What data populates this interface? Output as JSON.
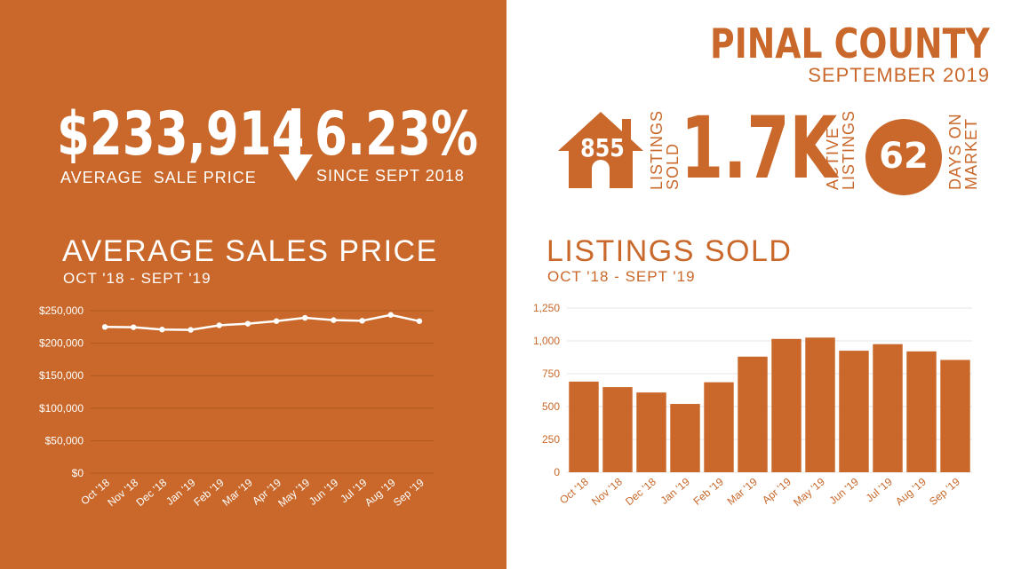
{
  "header": {
    "county": "PINAL COUNTY",
    "period": "SEPTEMBER 2019"
  },
  "stats": {
    "avg_price_value": "$233,914",
    "avg_price_label": "AVERAGE  SALE PRICE",
    "change_value": "6.23%",
    "change_label": "SINCE SEPT 2018",
    "listings_sold_value": "855",
    "listings_sold_label_1": "LISTINGS",
    "listings_sold_label_2": "SOLD",
    "active_value": "1.7K",
    "active_label_1": "ACTIVE",
    "active_label_2": "LISTINGS",
    "dom_value": "62",
    "dom_label_1": "DAYS ON",
    "dom_label_2": "MARKET"
  },
  "colors": {
    "brand": "#c9682a",
    "white": "#ffffff"
  },
  "icons": {
    "change": "arrow-down-icon",
    "listings": "house-icon",
    "days": "circle-badge-icon"
  },
  "chart_data": [
    {
      "type": "line",
      "title": "AVERAGE SALES PRICE",
      "subtitle": "OCT '18 - SEPT '19",
      "categories": [
        "Oct '18",
        "Nov '18",
        "Dec '18",
        "Jan '19",
        "Feb '19",
        "Mar '19",
        "Apr '19",
        "May '19",
        "Jun '19",
        "Jul '19",
        "Aug '19",
        "Sep '19"
      ],
      "values": [
        225000,
        224500,
        221000,
        220500,
        227500,
        230000,
        234000,
        239000,
        235500,
        234500,
        243500,
        233900
      ],
      "yticks": [
        "$0",
        "$50,000",
        "$100,000",
        "$150,000",
        "$200,000",
        "$250,000"
      ],
      "ylim": [
        0,
        250000
      ],
      "grid": true
    },
    {
      "type": "bar",
      "title": "LISTINGS SOLD",
      "subtitle": "OCT '18 - SEPT '19",
      "categories": [
        "Oct '18",
        "Nov '18",
        "Dec '18",
        "Jan '19",
        "Feb '19",
        "Mar '19",
        "Apr '19",
        "May '19",
        "Jun '19",
        "Jul '19",
        "Aug '19",
        "Sep '19"
      ],
      "values": [
        690,
        648,
        607,
        520,
        685,
        880,
        1015,
        1025,
        925,
        975,
        920,
        855
      ],
      "yticks": [
        "0",
        "250",
        "500",
        "750",
        "1,000",
        "1,250"
      ],
      "ylim": [
        0,
        1250
      ],
      "grid": true
    }
  ]
}
